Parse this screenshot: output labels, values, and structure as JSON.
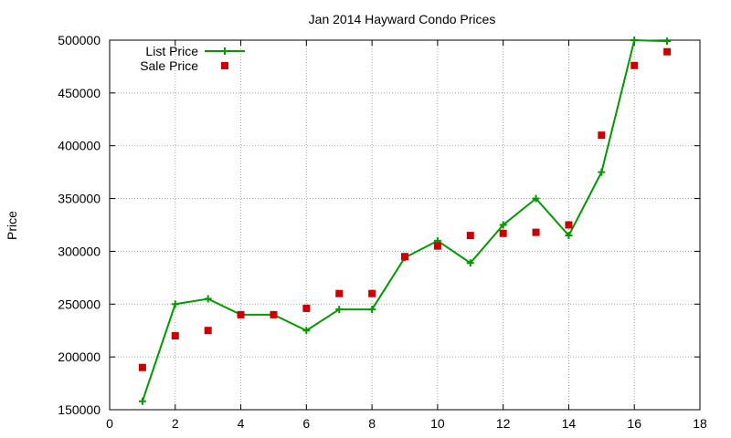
{
  "chart_data": {
    "type": "line",
    "title": "Jan 2014 Hayward Condo Prices",
    "xlabel": "",
    "ylabel": "Price",
    "xlim": [
      0,
      18
    ],
    "ylim": [
      150000,
      500000
    ],
    "x_ticks": [
      0,
      2,
      4,
      6,
      8,
      10,
      12,
      14,
      16,
      18
    ],
    "y_ticks": [
      150000,
      200000,
      250000,
      300000,
      350000,
      400000,
      450000,
      500000
    ],
    "grid": true,
    "legend_position": "top-left",
    "series": [
      {
        "name": "List Price",
        "style": "line-points",
        "color": "#009900",
        "x": [
          1,
          2,
          3,
          4,
          5,
          6,
          7,
          8,
          9,
          10,
          11,
          12,
          13,
          14,
          15,
          16,
          17
        ],
        "values": [
          158000,
          250000,
          255000,
          240000,
          240000,
          225000,
          245000,
          245000,
          294000,
          310000,
          289000,
          325000,
          350000,
          315000,
          375000,
          500000,
          499000
        ]
      },
      {
        "name": "Sale Price",
        "style": "points",
        "color": "#cc0000",
        "x": [
          1,
          2,
          3,
          4,
          5,
          6,
          7,
          8,
          9,
          10,
          11,
          12,
          13,
          14,
          15,
          16,
          17
        ],
        "values": [
          190000,
          220000,
          225000,
          240000,
          240000,
          246000,
          260000,
          260000,
          295000,
          305000,
          315000,
          317000,
          318000,
          325000,
          410000,
          476000,
          489000
        ]
      }
    ]
  }
}
